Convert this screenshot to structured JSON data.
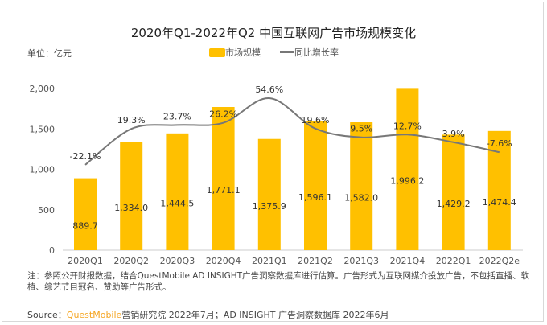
{
  "title": "2020年Q1-2022年Q2 中国互联网广告市场规模变化",
  "unit": "单位：亿元",
  "notes": "注：参照公开财报数据，结合QuestMobile AD INSIGHT广告洞察数据库进行估算。广告形式为互联网媒介投放广告，不包括直播、软植、综艺节目冠名、赞助等广告形式。",
  "source": {
    "prefix": "Source：",
    "brand": "QuestMobile",
    "rest": "营销研究院 2022年7月；AD INSIGHT 广告洞察数据库 2022年6月"
  },
  "watermark": "QUESTMOBILE",
  "chart_data": {
    "type": "bar+line",
    "title": "2020年Q1-2022年Q2 中国互联网广告市场规模变化",
    "categories": [
      "2020Q1",
      "2020Q2",
      "2020Q3",
      "2020Q4",
      "2021Q1",
      "2021Q2",
      "2021Q3",
      "2021Q4",
      "2022Q1",
      "2022Q2e"
    ],
    "series": [
      {
        "name": "市场规模",
        "type": "bar",
        "color": "#ffc000",
        "values": [
          889.7,
          1334.0,
          1444.5,
          1771.1,
          1375.9,
          1596.1,
          1582.0,
          1996.2,
          1429.2,
          1474.4
        ],
        "labels": [
          "889.7",
          "1,334.0",
          "1,444.5",
          "1,771.1",
          "1,375.9",
          "1,596.1",
          "1,582.0",
          "1,996.2",
          "1,429.2",
          "1,474.4"
        ]
      },
      {
        "name": "同比增长率",
        "type": "line",
        "color": "#777777",
        "unit": "%",
        "values": [
          -22.1,
          19.3,
          23.7,
          26.2,
          54.6,
          19.6,
          9.5,
          12.7,
          3.9,
          -7.6
        ],
        "labels": [
          "-22.1%",
          "19.3%",
          "23.7%",
          "26.2%",
          "54.6%",
          "19.6%",
          "9.5%",
          "12.7%",
          "3.9%",
          "-7.6%"
        ]
      }
    ],
    "yticks": [
      "0",
      "500",
      "1,000",
      "1,500",
      "2,000"
    ],
    "ylim": [
      0,
      2000
    ],
    "legend": "top-center",
    "grid": false
  }
}
